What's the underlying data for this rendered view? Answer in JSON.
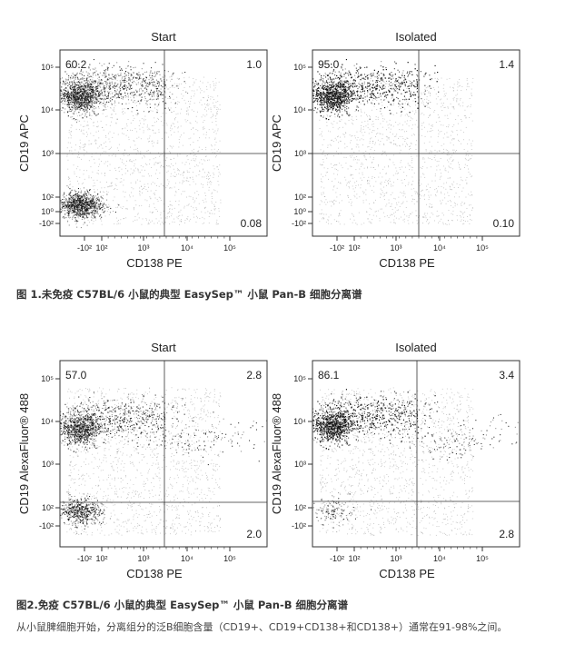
{
  "chart_data": [
    {
      "type": "scatter",
      "title": "Start",
      "xlabel": "CD138 PE",
      "ylabel": "CD19 APC",
      "x_ticks": [
        "-10²",
        "10²",
        "10³",
        "10⁴",
        "10⁵"
      ],
      "y_ticks": [
        "10⁵",
        "10⁴",
        "10³",
        "10²",
        "10⁰",
        "-10²"
      ],
      "quadrants": {
        "upper_left": "60.2",
        "upper_right": "1.0",
        "lower_right": "0.08"
      },
      "clusters": [
        {
          "x": 0.0,
          "y": 3.85,
          "weight": 0.62
        },
        {
          "x": 0.0,
          "y": 0.15,
          "weight": 0.36
        }
      ]
    },
    {
      "type": "scatter",
      "title": "Isolated",
      "xlabel": "CD138 PE",
      "ylabel": "CD19 APC",
      "x_ticks": [
        "-10²",
        "10²",
        "10³",
        "10⁴",
        "10⁵"
      ],
      "y_ticks": [
        "10⁵",
        "10⁴",
        "10³",
        "10²",
        "10⁰",
        "-10²"
      ],
      "quadrants": {
        "upper_left": "95.0",
        "upper_right": "1.4",
        "lower_right": "0.10"
      },
      "clusters": [
        {
          "x": 0.0,
          "y": 3.85,
          "weight": 0.93
        }
      ]
    },
    {
      "type": "scatter",
      "title": "Start",
      "xlabel": "CD138 PE",
      "ylabel": "CD19 AlexaFluor® 488",
      "x_ticks": [
        "-10²",
        "10²",
        "10³",
        "10⁴",
        "10⁵"
      ],
      "y_ticks": [
        "10⁵",
        "10⁴",
        "10³",
        "10²",
        "-10²"
      ],
      "quadrants": {
        "upper_left": "57.0",
        "upper_right": "2.8",
        "lower_right": "2.0"
      },
      "clusters": [
        {
          "x": 0.0,
          "y": 3.1,
          "weight": 0.57
        },
        {
          "x": 0.0,
          "y": 0.3,
          "weight": 0.2
        },
        {
          "x": 3.5,
          "y": 2.6,
          "weight": 0.05
        }
      ]
    },
    {
      "type": "scatter",
      "title": "Isolated",
      "xlabel": "CD138 PE",
      "ylabel": "CD19 AlexaFluor® 488",
      "x_ticks": [
        "-10²",
        "10²",
        "10³",
        "10⁴",
        "10⁵"
      ],
      "y_ticks": [
        "10⁵",
        "10⁴",
        "10³",
        "10²",
        "-10²"
      ],
      "quadrants": {
        "upper_left": "86.1",
        "upper_right": "3.4",
        "lower_right": "2.8"
      },
      "clusters": [
        {
          "x": 0.0,
          "y": 3.2,
          "weight": 0.86
        },
        {
          "x": 0.0,
          "y": 0.3,
          "weight": 0.05
        },
        {
          "x": 3.5,
          "y": 2.6,
          "weight": 0.06
        }
      ]
    }
  ],
  "captions": {
    "fig1": "图 1.未免疫 C57BL/6 小鼠的典型 EasySep™ 小鼠 Pan-B 细胞分离谱",
    "fig2": "图2.免疫 C57BL/6 小鼠的典型 EasySep™ 小鼠 Pan-B 细胞分离谱",
    "note": "从小鼠脾细胞开始，分离组分的泛B细胞含量（CD19+、CD19+CD138+和CD138+）通常在91-98%之间。"
  }
}
